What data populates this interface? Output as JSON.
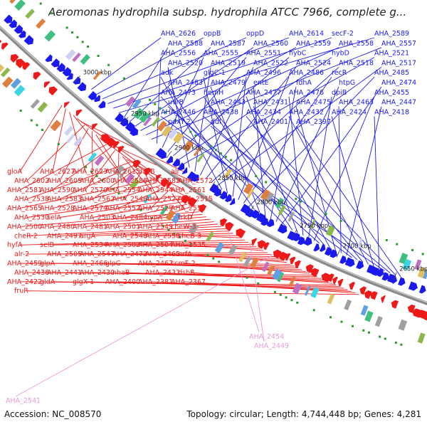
{
  "title": "Aeromonas hydrophila subsp. hydrophila ATCC 7966, complete g...",
  "footer": {
    "accession": "Accession: NC_008570",
    "stats": "Topology: circular; Length: 4,744,448 bp; Genes: 4,281"
  },
  "colors": {
    "forward": "#1a1aee",
    "reverse": "#ee1a1a",
    "pseudo": "#e89ad8",
    "backbone": "#8a8a8a",
    "gc": "#2a9a2a"
  },
  "ticks": [
    "3000 kbp",
    "2950 kbp",
    "2900 kbp",
    "2850 kbp",
    "2800 kbp",
    "2750 kbp",
    "2700 kbp",
    "2650 kbp"
  ],
  "forward_labels": [
    "AHA_2626",
    "oppB",
    "oppD",
    "AHA_2614",
    "secF-2",
    "AHA_2589",
    "AHA_2588",
    "AHA_2587",
    "AHA_2560",
    "AHA_2559",
    "AHA_2558",
    "AHA_2557",
    "AHA_2556",
    "AHA_2555",
    "AHA_2551",
    "hybC",
    "hybD",
    "AHA_2521",
    "AHA_2520",
    "AHA_2519",
    "AHA_2522",
    "AHA_2524",
    "AHA_2518",
    "AHA_2517",
    "adk",
    "glgC-1",
    "AHA_2496",
    "AHA_2486",
    "recR",
    "AHA_2485",
    "AHA_2483",
    "AHA_2479",
    "entE",
    "fdhA",
    "htpG",
    "AHA_2474",
    "AHA_2473",
    "hemH",
    "AHA_2477",
    "AHA_2476",
    "dpiB",
    "AHA_2455",
    "uvrB",
    "AHA_2443",
    "AHA_2431",
    "AHA_2475",
    "AHA_2463",
    "AHA_2447",
    "AHA_2446",
    "AHA_2438",
    "AHA_2434",
    "AHA_2432",
    "AHA_2424",
    "AHA_2418",
    "pdxY-2",
    "ddl",
    "AHA_2401",
    "AHA_2397"
  ],
  "reverse_labels": [
    "gloA",
    "AHA_2627",
    "AHA_2623",
    "AHA_2615",
    "dacB",
    "alr",
    "AHA_2602",
    "AHA_2605",
    "AHA_2600",
    "AHA_2586",
    "AHA_2582",
    "AHA_2572",
    "AHA_2581",
    "AHA_2590",
    "AHA_2570",
    "AHA_2554",
    "AHA_2544",
    "AHA_2561",
    "AHA_2538",
    "AHA_2583",
    "AHA_2562",
    "AHA_2546",
    "AHA_2527",
    "AHA_2515",
    "AHA_2565",
    "AHA_2528",
    "AHA_2574",
    "AHA_2552",
    "AHA_2529",
    "AHA_2553",
    "AHA_2530",
    "selA",
    "AHA_2503",
    "AHA_2484",
    "hypA",
    "trkD",
    "AHA_2500",
    "AHA_2480",
    "AHA_2481",
    "AHA_2501",
    "AHA_2549",
    "cheW-3",
    "cheR-2",
    "AHA_2497",
    "argA",
    "AHA_2548",
    "AHA_2550",
    "cheB-3",
    "hyfA",
    "selB",
    "AHA_2534",
    "AHA_2502",
    "AHA_2504",
    "AHA_2535",
    "alr-2",
    "AHA_2505",
    "AHA_2547",
    "AHA_2472",
    "AHA_2465",
    "nrfA",
    "AHA_2459",
    "glpA",
    "AHA_2466",
    "glpC",
    "AHA_2467",
    "ccmF-2",
    "AHA_2436",
    "AHA_2441",
    "AHA_2430",
    "nhaB",
    "AHA_2433",
    "dsbB",
    "AHA_2422",
    "gldA",
    "glgX-1",
    "AHA_2400",
    "AHA_2381",
    "AHA_2367",
    "fruR"
  ],
  "pseudo_labels": [
    "AHA_2454",
    "AHA_2449",
    "AHA_2541"
  ]
}
